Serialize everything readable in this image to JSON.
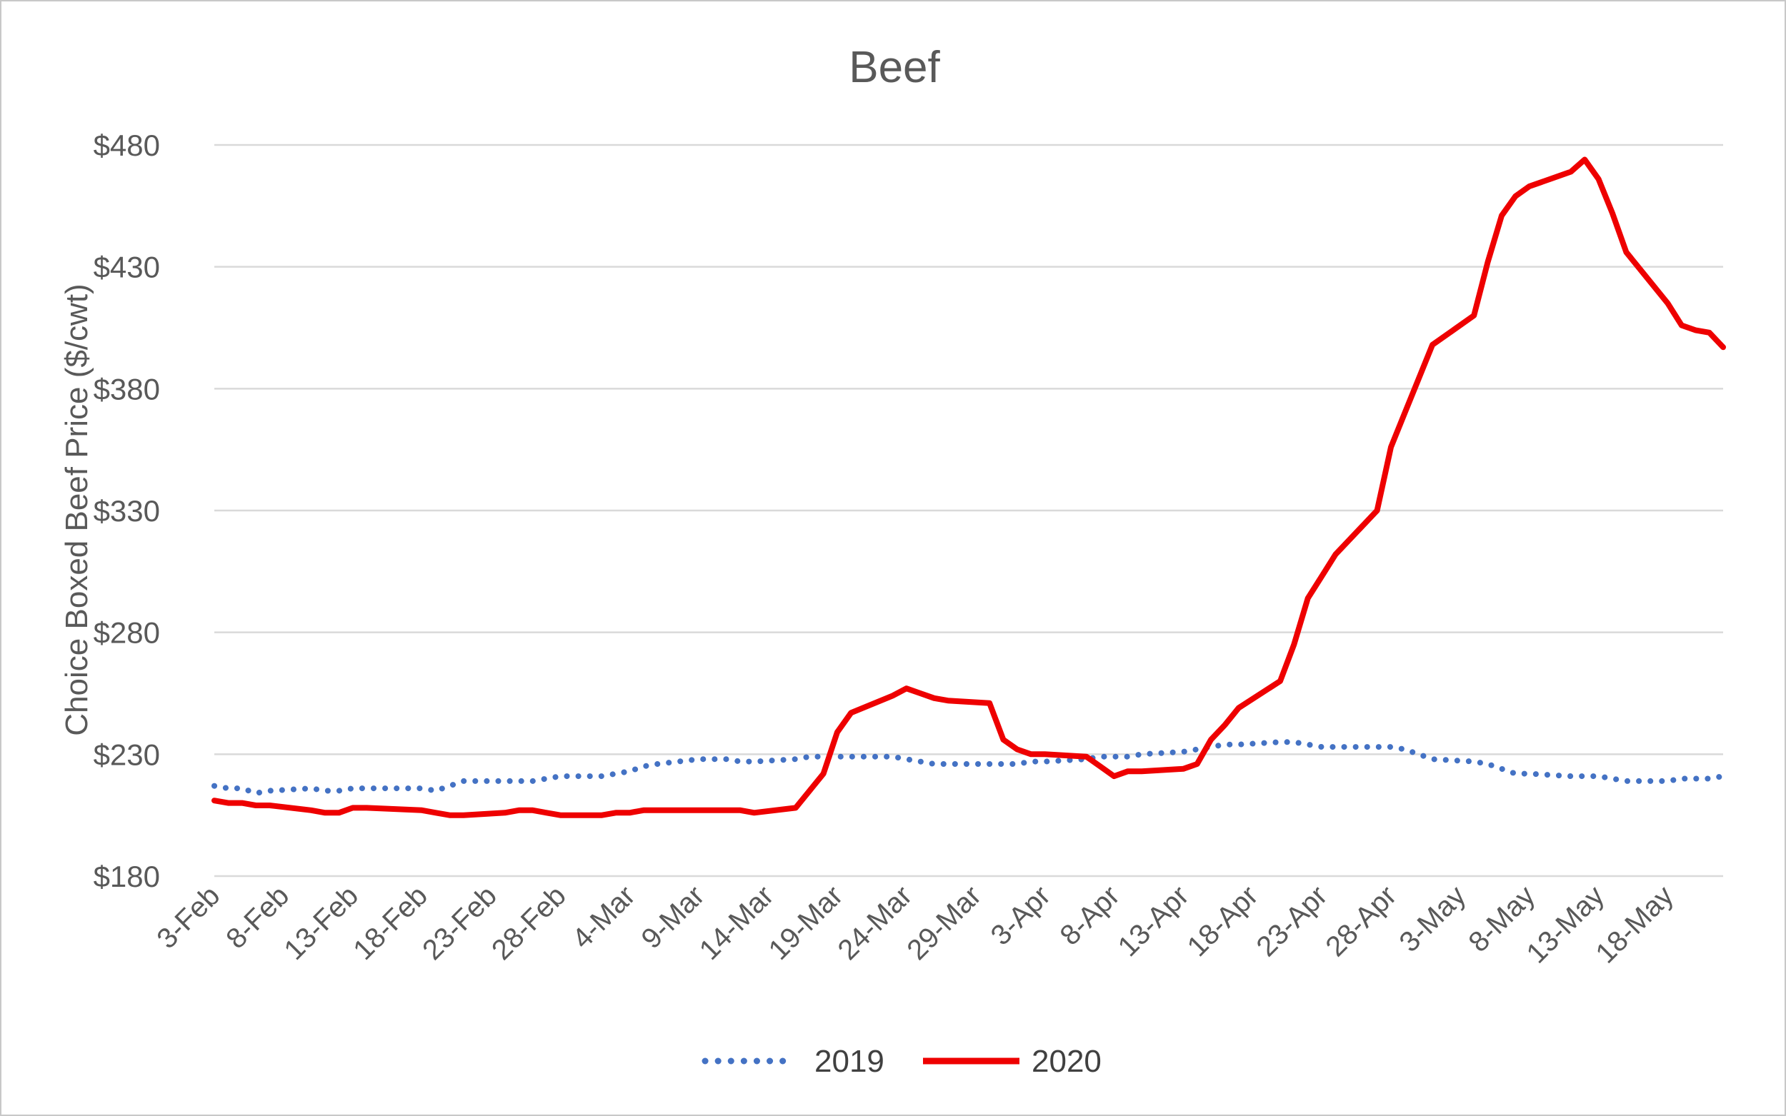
{
  "chart_data": {
    "type": "line",
    "title": "Beef",
    "xlabel": "",
    "ylabel": "Choice Boxed Beef Price ($/cwt)",
    "ylim": [
      180,
      480
    ],
    "yticks": [
      "$180",
      "$230",
      "$280",
      "$330",
      "$380",
      "$430",
      "$480"
    ],
    "ytick_values": [
      180,
      230,
      280,
      330,
      380,
      430,
      480
    ],
    "grid": true,
    "legend_position": "bottom",
    "x_tick_labels": [
      "3-Feb",
      "8-Feb",
      "13-Feb",
      "18-Feb",
      "23-Feb",
      "28-Feb",
      "4-Mar",
      "9-Mar",
      "14-Mar",
      "19-Mar",
      "24-Mar",
      "29-Mar",
      "3-Apr",
      "8-Apr",
      "13-Apr",
      "18-Apr",
      "23-Apr",
      "28-Apr",
      "3-May",
      "8-May",
      "13-May",
      "18-May"
    ],
    "x": [
      "3-Feb",
      "4-Feb",
      "5-Feb",
      "6-Feb",
      "7-Feb",
      "10-Feb",
      "11-Feb",
      "12-Feb",
      "13-Feb",
      "14-Feb",
      "18-Feb",
      "19-Feb",
      "20-Feb",
      "21-Feb",
      "24-Feb",
      "25-Feb",
      "26-Feb",
      "27-Feb",
      "28-Feb",
      "2-Mar",
      "3-Mar",
      "4-Mar",
      "5-Mar",
      "6-Mar",
      "9-Mar",
      "10-Mar",
      "11-Mar",
      "12-Mar",
      "13-Mar",
      "16-Mar",
      "17-Mar",
      "18-Mar",
      "19-Mar",
      "20-Mar",
      "23-Mar",
      "24-Mar",
      "25-Mar",
      "26-Mar",
      "27-Mar",
      "30-Mar",
      "31-Mar",
      "1-Apr",
      "2-Apr",
      "3-Apr",
      "6-Apr",
      "7-Apr",
      "8-Apr",
      "9-Apr",
      "10-Apr",
      "13-Apr",
      "14-Apr",
      "15-Apr",
      "16-Apr",
      "17-Apr",
      "20-Apr",
      "21-Apr",
      "22-Apr",
      "23-Apr",
      "24-Apr",
      "27-Apr",
      "28-Apr",
      "29-Apr",
      "30-Apr",
      "1-May",
      "4-May",
      "5-May",
      "6-May",
      "7-May",
      "8-May",
      "11-May",
      "12-May",
      "13-May",
      "14-May",
      "15-May",
      "18-May",
      "19-May",
      "20-May",
      "21-May",
      "22-May"
    ],
    "series": [
      {
        "name": "2019",
        "color": "#4472c4",
        "style": "dotted",
        "values": [
          217,
          216,
          216,
          214,
          215,
          216,
          215,
          215,
          216,
          216,
          216,
          215,
          217,
          219,
          219,
          219,
          219,
          220,
          221,
          221,
          222,
          223,
          225,
          226,
          228,
          228,
          228,
          227,
          227,
          228,
          229,
          229,
          229,
          229,
          229,
          228,
          227,
          226,
          226,
          226,
          226,
          226,
          227,
          227,
          228,
          229,
          229,
          229,
          230,
          231,
          232,
          233,
          234,
          234,
          235,
          235,
          234,
          233,
          233,
          233,
          233,
          232,
          230,
          228,
          227,
          226,
          224,
          222,
          222,
          221,
          221,
          221,
          220,
          219,
          219,
          220,
          220,
          220,
          221
        ]
      },
      {
        "name": "2020",
        "color": "#ee0000",
        "style": "solid",
        "values": [
          211,
          210,
          210,
          209,
          209,
          207,
          206,
          206,
          208,
          208,
          207,
          206,
          205,
          205,
          206,
          207,
          207,
          206,
          205,
          205,
          206,
          206,
          207,
          207,
          207,
          207,
          207,
          207,
          206,
          208,
          215,
          222,
          239,
          247,
          254,
          257,
          255,
          253,
          252,
          251,
          236,
          232,
          230,
          230,
          229,
          225,
          221,
          223,
          223,
          224,
          226,
          236,
          242,
          249,
          260,
          275,
          294,
          303,
          312,
          330,
          356,
          370,
          384,
          398,
          410,
          432,
          451,
          459,
          463,
          469,
          474,
          466,
          452,
          436,
          415,
          406,
          404,
          403,
          397
        ]
      }
    ]
  },
  "legend": {
    "items": [
      {
        "label": "2019"
      },
      {
        "label": "2020"
      }
    ]
  }
}
